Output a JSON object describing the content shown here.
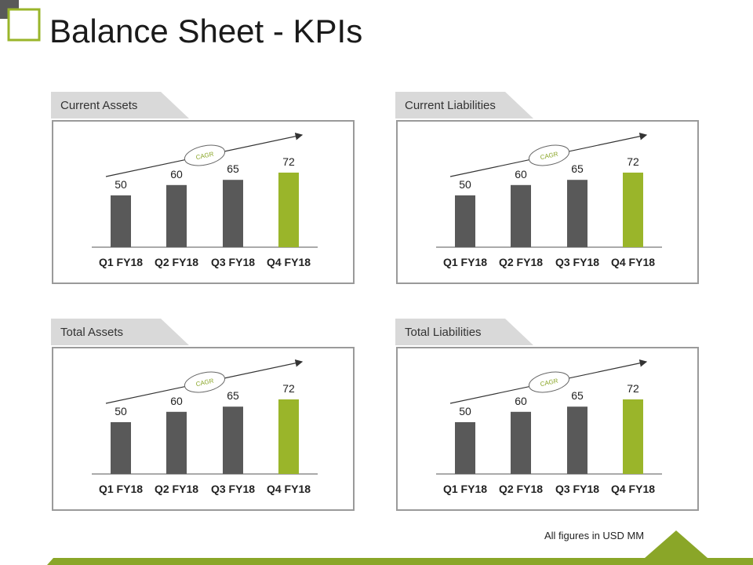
{
  "page": {
    "title": "Balance Sheet - KPIs",
    "footnote": "All figures in USD MM"
  },
  "colors": {
    "bar": "#595959",
    "highlight": "#9ab52a",
    "accent": "#8aa628",
    "tab": "#d9d9d9",
    "border": "#9a9a9a"
  },
  "chart_data": [
    {
      "type": "bar",
      "title": "Current Assets",
      "categories": [
        "Q1 FY18",
        "Q2 FY18",
        "Q3 FY18",
        "Q4 FY18"
      ],
      "values": [
        50,
        60,
        65,
        72
      ],
      "highlight_index": 3,
      "trend_label": "CAGR"
    },
    {
      "type": "bar",
      "title": "Current Liabilities",
      "categories": [
        "Q1 FY18",
        "Q2 FY18",
        "Q3 FY18",
        "Q4 FY18"
      ],
      "values": [
        50,
        60,
        65,
        72
      ],
      "highlight_index": 3,
      "trend_label": "CAGR"
    },
    {
      "type": "bar",
      "title": "Total Assets",
      "categories": [
        "Q1 FY18",
        "Q2 FY18",
        "Q3 FY18",
        "Q4 FY18"
      ],
      "values": [
        50,
        60,
        65,
        72
      ],
      "highlight_index": 3,
      "trend_label": "CAGR"
    },
    {
      "type": "bar",
      "title": "Total Liabilities",
      "categories": [
        "Q1 FY18",
        "Q2 FY18",
        "Q3 FY18",
        "Q4 FY18"
      ],
      "values": [
        50,
        60,
        65,
        72
      ],
      "highlight_index": 3,
      "trend_label": "CAGR"
    }
  ]
}
